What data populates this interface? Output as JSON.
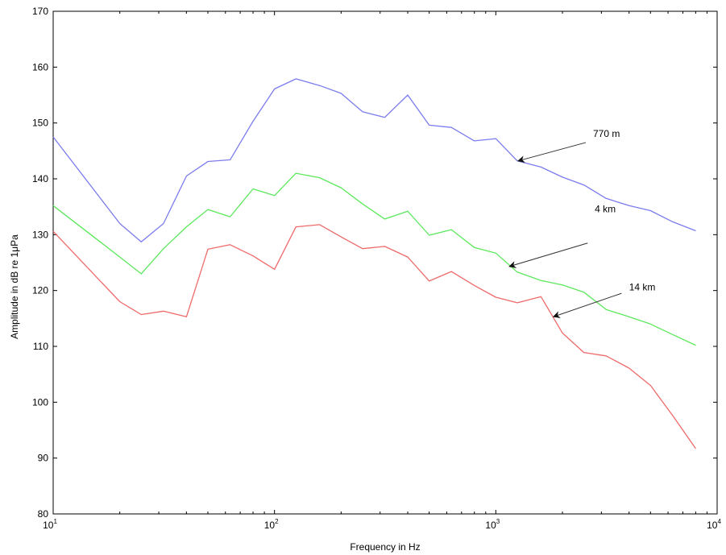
{
  "chart_data": {
    "type": "line",
    "title": "",
    "xlabel": "Frequency in Hz",
    "ylabel": "Amplitude in dB re 1μPa",
    "xscale": "log",
    "xlim": [
      10,
      10000
    ],
    "ylim": [
      80,
      170
    ],
    "grid": false,
    "x_tick_values": [
      10,
      100,
      1000,
      10000
    ],
    "x_tick_labels": [
      {
        "base": "10",
        "exp": "1"
      },
      {
        "base": "10",
        "exp": "2"
      },
      {
        "base": "10",
        "exp": "3"
      },
      {
        "base": "10",
        "exp": "4"
      }
    ],
    "y_ticks": [
      80,
      90,
      100,
      110,
      120,
      130,
      140,
      150,
      160,
      170
    ],
    "x": [
      10,
      20,
      25,
      31.5,
      40,
      50,
      63,
      80,
      100,
      125,
      160,
      200,
      250,
      315,
      400,
      500,
      630,
      800,
      1000,
      1250,
      1600,
      2000,
      2500,
      3150,
      4000,
      5000,
      6300,
      8000
    ],
    "series": [
      {
        "name": "770 m",
        "color": "#7b7bee",
        "values": [
          147.5,
          132,
          128.7,
          132,
          140.5,
          143.1,
          143.4,
          150.3,
          156.1,
          157.9,
          156.7,
          155.3,
          152.0,
          151.0,
          155.0,
          149.6,
          149.2,
          146.8,
          147.2,
          143.2,
          142.1,
          140.3,
          138.9,
          136.5,
          135.2,
          134.3,
          132.3,
          130.7
        ]
      },
      {
        "name": "4 km",
        "color": "#5ce85c",
        "values": [
          135.2,
          126,
          123.0,
          127.5,
          131.4,
          134.5,
          133.2,
          138.2,
          137.0,
          141.0,
          140.2,
          138.4,
          135.5,
          132.8,
          134.2,
          129.9,
          130.9,
          127.7,
          126.7,
          123.3,
          121.8,
          121.0,
          119.7,
          116.6,
          115.3,
          114.0,
          112.1,
          110.2
        ]
      },
      {
        "name": "14 km",
        "color": "#ee6a6a",
        "values": [
          130.6,
          118,
          115.7,
          116.3,
          115.3,
          127.4,
          128.2,
          126.2,
          123.8,
          131.4,
          131.8,
          129.6,
          127.5,
          127.9,
          126.0,
          121.7,
          123.4,
          120.9,
          118.8,
          117.8,
          118.9,
          112.4,
          108.9,
          108.3,
          106.1,
          103.0,
          97.6,
          91.7
        ]
      }
    ],
    "annotations": [
      {
        "text": "770 m",
        "text_x": 2750,
        "text_y": 147.5,
        "tail_x": 2550,
        "tail_y": 146.5,
        "head_x": 1260,
        "head_y": 143.2
      },
      {
        "text": "4 km",
        "text_x": 2800,
        "text_y": 134,
        "tail_x": 2600,
        "tail_y": 128.5,
        "head_x": 1150,
        "head_y": 124.3
      },
      {
        "text": "14 km",
        "text_x": 4000,
        "text_y": 120,
        "tail_x": 3700,
        "tail_y": 119.5,
        "head_x": 1820,
        "head_y": 115.3
      }
    ]
  }
}
